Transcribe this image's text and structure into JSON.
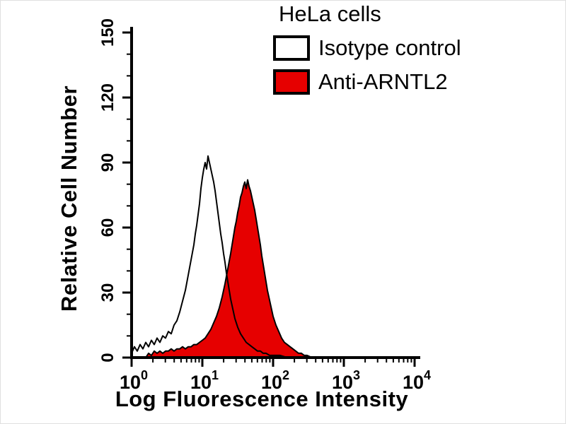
{
  "chart_data": {
    "type": "area",
    "variant": "flow-cytometry-overlay-histogram",
    "title": "HeLa cells",
    "xlabel": "Log Fluorescence Intensity",
    "ylabel": "Relative Cell Number",
    "x_scale": "log10",
    "xlim_log10": [
      0,
      4
    ],
    "ylim": [
      0,
      150
    ],
    "y_major_ticks": [
      0,
      30,
      60,
      90,
      120,
      150
    ],
    "y_minor_step": 10,
    "x_tick_base": "10",
    "x_tick_exponents": [
      0,
      1,
      2,
      3,
      4
    ],
    "grid": false,
    "legend_position": "top-right",
    "colors": {
      "background": "#ffffff",
      "axis": "#000000",
      "anti_arntl2_fill": "#e60000",
      "outline": "#000000"
    },
    "legend": [
      {
        "label": "Isotype control",
        "fill": "#ffffff"
      },
      {
        "label": "Anti-ARNTL2",
        "fill": "#e60000"
      }
    ],
    "series": [
      {
        "name": "Anti-ARNTL2",
        "fill": "#e60000",
        "stroke": "#000000",
        "peak_log10x": 1.64,
        "peak_y": 82,
        "points": [
          [
            0.2,
            0
          ],
          [
            0.24,
            2
          ],
          [
            0.28,
            1
          ],
          [
            0.32,
            3
          ],
          [
            0.36,
            2
          ],
          [
            0.4,
            3
          ],
          [
            0.44,
            2
          ],
          [
            0.48,
            3
          ],
          [
            0.52,
            3
          ],
          [
            0.56,
            4
          ],
          [
            0.6,
            3
          ],
          [
            0.64,
            4
          ],
          [
            0.68,
            4
          ],
          [
            0.72,
            5
          ],
          [
            0.76,
            4
          ],
          [
            0.8,
            5
          ],
          [
            0.84,
            5
          ],
          [
            0.88,
            6
          ],
          [
            0.92,
            6
          ],
          [
            0.96,
            7
          ],
          [
            1.0,
            8
          ],
          [
            1.04,
            9
          ],
          [
            1.08,
            11
          ],
          [
            1.12,
            13
          ],
          [
            1.16,
            16
          ],
          [
            1.2,
            19
          ],
          [
            1.24,
            23
          ],
          [
            1.28,
            28
          ],
          [
            1.32,
            34
          ],
          [
            1.36,
            41
          ],
          [
            1.4,
            48
          ],
          [
            1.42,
            52
          ],
          [
            1.44,
            56
          ],
          [
            1.46,
            60
          ],
          [
            1.48,
            63
          ],
          [
            1.5,
            67
          ],
          [
            1.52,
            70
          ],
          [
            1.54,
            74
          ],
          [
            1.56,
            76
          ],
          [
            1.58,
            79
          ],
          [
            1.6,
            81
          ],
          [
            1.62,
            78
          ],
          [
            1.64,
            82
          ],
          [
            1.66,
            79
          ],
          [
            1.68,
            77
          ],
          [
            1.7,
            74
          ],
          [
            1.72,
            71
          ],
          [
            1.74,
            68
          ],
          [
            1.76,
            64
          ],
          [
            1.78,
            60
          ],
          [
            1.8,
            56
          ],
          [
            1.82,
            52
          ],
          [
            1.84,
            47
          ],
          [
            1.86,
            43
          ],
          [
            1.88,
            39
          ],
          [
            1.9,
            35
          ],
          [
            1.92,
            31
          ],
          [
            1.94,
            28
          ],
          [
            1.96,
            25
          ],
          [
            1.98,
            22
          ],
          [
            2.0,
            19
          ],
          [
            2.04,
            15
          ],
          [
            2.08,
            12
          ],
          [
            2.12,
            9
          ],
          [
            2.16,
            7
          ],
          [
            2.2,
            6
          ],
          [
            2.24,
            5
          ],
          [
            2.28,
            4
          ],
          [
            2.32,
            3
          ],
          [
            2.36,
            2
          ],
          [
            2.4,
            2
          ],
          [
            2.44,
            1
          ],
          [
            2.48,
            1
          ],
          [
            2.55,
            0
          ]
        ]
      },
      {
        "name": "Isotype control",
        "fill": "none",
        "stroke": "#000000",
        "peak_log10x": 1.08,
        "peak_y": 93,
        "points": [
          [
            0.0,
            2
          ],
          [
            0.04,
            5
          ],
          [
            0.08,
            3
          ],
          [
            0.12,
            6
          ],
          [
            0.16,
            4
          ],
          [
            0.2,
            7
          ],
          [
            0.24,
            5
          ],
          [
            0.28,
            8
          ],
          [
            0.32,
            6
          ],
          [
            0.36,
            9
          ],
          [
            0.4,
            7
          ],
          [
            0.44,
            10
          ],
          [
            0.48,
            9
          ],
          [
            0.52,
            12
          ],
          [
            0.56,
            11
          ],
          [
            0.6,
            15
          ],
          [
            0.64,
            17
          ],
          [
            0.68,
            21
          ],
          [
            0.72,
            26
          ],
          [
            0.76,
            31
          ],
          [
            0.8,
            38
          ],
          [
            0.84,
            45
          ],
          [
            0.88,
            52
          ],
          [
            0.9,
            57
          ],
          [
            0.92,
            61
          ],
          [
            0.94,
            66
          ],
          [
            0.96,
            71
          ],
          [
            0.98,
            78
          ],
          [
            1.0,
            83
          ],
          [
            1.02,
            87
          ],
          [
            1.04,
            90
          ],
          [
            1.06,
            87
          ],
          [
            1.08,
            93
          ],
          [
            1.1,
            90
          ],
          [
            1.12,
            87
          ],
          [
            1.14,
            84
          ],
          [
            1.16,
            81
          ],
          [
            1.18,
            77
          ],
          [
            1.2,
            72
          ],
          [
            1.22,
            67
          ],
          [
            1.24,
            62
          ],
          [
            1.26,
            57
          ],
          [
            1.28,
            53
          ],
          [
            1.3,
            48
          ],
          [
            1.32,
            44
          ],
          [
            1.34,
            39
          ],
          [
            1.36,
            35
          ],
          [
            1.38,
            31
          ],
          [
            1.4,
            27
          ],
          [
            1.42,
            24
          ],
          [
            1.44,
            21
          ],
          [
            1.46,
            18
          ],
          [
            1.48,
            16
          ],
          [
            1.5,
            14
          ],
          [
            1.54,
            11
          ],
          [
            1.58,
            9
          ],
          [
            1.62,
            7
          ],
          [
            1.66,
            6
          ],
          [
            1.7,
            5
          ],
          [
            1.74,
            4
          ],
          [
            1.78,
            3
          ],
          [
            1.82,
            3
          ],
          [
            1.86,
            2
          ],
          [
            1.9,
            2
          ],
          [
            1.95,
            1
          ],
          [
            2.0,
            1
          ],
          [
            2.1,
            1
          ],
          [
            2.2,
            0
          ]
        ]
      }
    ]
  }
}
